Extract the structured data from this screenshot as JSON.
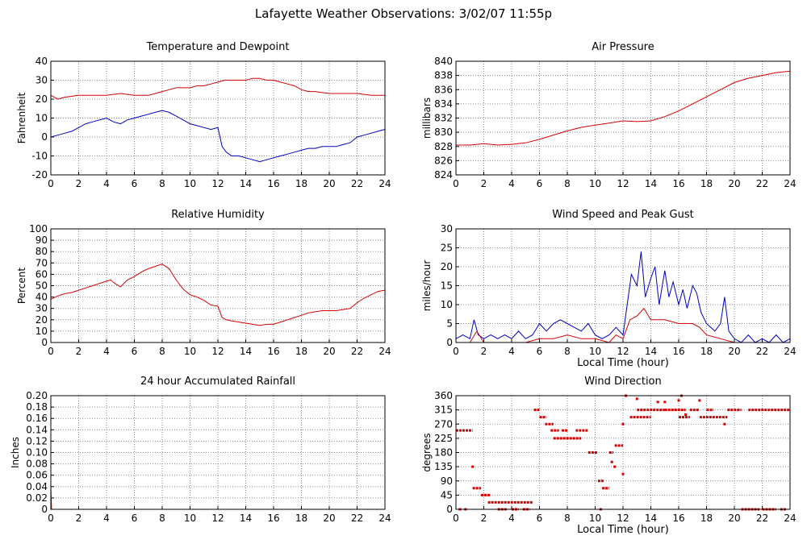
{
  "page": {
    "title": "Lafayette Weather Observations: 3/02/07 11:55p"
  },
  "colors": {
    "red": "#d40000",
    "blue": "#0000c0",
    "grid": "#888888",
    "frame": "#000000"
  },
  "chart_data": [
    {
      "id": "temp",
      "type": "line",
      "title": "Temperature and Dewpoint",
      "ylabel": "Fahrenheit",
      "xlabel": "",
      "xlim": [
        0,
        24
      ],
      "xticks": [
        0,
        2,
        4,
        6,
        8,
        10,
        12,
        14,
        16,
        18,
        20,
        22,
        24
      ],
      "ylim": [
        -20,
        40
      ],
      "yticks": [
        -20,
        -10,
        0,
        10,
        20,
        30,
        40
      ],
      "grid": true,
      "series": [
        {
          "color": "red",
          "x": [
            0,
            0.5,
            1,
            2,
            3,
            4,
            5,
            6,
            7,
            7.5,
            8,
            8.5,
            9,
            9.5,
            10,
            10.5,
            11,
            11.5,
            12,
            12.5,
            13,
            13.5,
            14,
            14.5,
            15,
            15.5,
            16,
            16.5,
            17,
            17.5,
            18,
            18.5,
            19,
            20,
            21,
            22,
            23,
            24
          ],
          "y": [
            22,
            20,
            21,
            22,
            22,
            22,
            23,
            22,
            22,
            23,
            24,
            25,
            26,
            26,
            26,
            27,
            27,
            28,
            29,
            30,
            30,
            30,
            30,
            31,
            31,
            30,
            30,
            29,
            28,
            27,
            25,
            24,
            24,
            23,
            23,
            23,
            22,
            22
          ]
        },
        {
          "color": "blue",
          "x": [
            0,
            0.5,
            1,
            1.5,
            2,
            2.5,
            3,
            3.5,
            4,
            4.5,
            5,
            5.5,
            6,
            6.5,
            7,
            7.5,
            8,
            8.5,
            9,
            9.5,
            10,
            10.5,
            11,
            11.5,
            12,
            12.3,
            12.6,
            13,
            13.5,
            14,
            14.5,
            15,
            15.5,
            16,
            16.5,
            17,
            17.5,
            18,
            18.5,
            19,
            19.5,
            20,
            20.5,
            21,
            21.5,
            22,
            22.5,
            23,
            23.5,
            24
          ],
          "y": [
            0,
            1,
            2,
            3,
            5,
            7,
            8,
            9,
            10,
            8,
            7,
            9,
            10,
            11,
            12,
            13,
            14,
            13,
            11,
            9,
            7,
            6,
            5,
            4,
            5,
            -5,
            -8,
            -10,
            -10,
            -11,
            -12,
            -13,
            -12,
            -11,
            -10,
            -9,
            -8,
            -7,
            -6,
            -6,
            -5,
            -5,
            -5,
            -4,
            -3,
            0,
            1,
            2,
            3,
            4
          ]
        }
      ]
    },
    {
      "id": "pressure",
      "type": "line",
      "title": "Air Pressure",
      "ylabel": "millibars",
      "xlabel": "",
      "xlim": [
        0,
        24
      ],
      "xticks": [
        0,
        2,
        4,
        6,
        8,
        10,
        12,
        14,
        16,
        18,
        20,
        22,
        24
      ],
      "ylim": [
        824,
        840
      ],
      "yticks": [
        824,
        826,
        828,
        830,
        832,
        834,
        836,
        838,
        840
      ],
      "grid": true,
      "series": [
        {
          "color": "red",
          "x": [
            0,
            1,
            2,
            3,
            4,
            5,
            6,
            7,
            8,
            9,
            10,
            11,
            12,
            13,
            14,
            15,
            16,
            17,
            18,
            19,
            20,
            21,
            22,
            23,
            24
          ],
          "y": [
            828.2,
            828.2,
            828.4,
            828.2,
            828.3,
            828.5,
            829,
            829.6,
            830.2,
            830.7,
            831,
            831.3,
            831.6,
            831.5,
            831.6,
            832.2,
            833,
            834,
            835,
            836,
            837,
            837.6,
            838,
            838.4,
            838.6
          ]
        }
      ]
    },
    {
      "id": "humidity",
      "type": "line",
      "title": "Relative Humidity",
      "ylabel": "Percent",
      "xlabel": "",
      "xlim": [
        0,
        24
      ],
      "xticks": [
        0,
        2,
        4,
        6,
        8,
        10,
        12,
        14,
        16,
        18,
        20,
        22,
        24
      ],
      "ylim": [
        0,
        100
      ],
      "yticks": [
        0,
        10,
        20,
        30,
        40,
        50,
        60,
        70,
        80,
        90,
        100
      ],
      "grid": true,
      "series": [
        {
          "color": "red",
          "x": [
            0,
            0.5,
            1,
            1.5,
            2,
            2.5,
            3,
            3.5,
            4,
            4.3,
            4.6,
            5,
            5.5,
            6,
            6.5,
            7,
            7.5,
            8,
            8.5,
            9,
            9.5,
            10,
            10.5,
            11,
            11.5,
            12,
            12.3,
            12.6,
            13,
            13.5,
            14,
            14.5,
            15,
            15.5,
            16,
            16.5,
            17,
            17.5,
            18,
            18.5,
            19,
            19.5,
            20,
            20.5,
            21,
            21.5,
            22,
            22.5,
            23,
            23.5,
            24
          ],
          "y": [
            38,
            41,
            43,
            44,
            46,
            48,
            50,
            52,
            54,
            55,
            52,
            49,
            55,
            58,
            62,
            65,
            67,
            69,
            65,
            55,
            47,
            42,
            40,
            37,
            33,
            32,
            22,
            20,
            19,
            18,
            17,
            16,
            15,
            16,
            16,
            18,
            20,
            22,
            24,
            26,
            27,
            28,
            28,
            28,
            29,
            30,
            35,
            39,
            42,
            45,
            46
          ]
        }
      ]
    },
    {
      "id": "wind",
      "type": "line",
      "title": "Wind Speed and Peak Gust",
      "ylabel": "miles/hour",
      "xlabel": "Local Time (hour)",
      "xlim": [
        0,
        24
      ],
      "xticks": [
        0,
        2,
        4,
        6,
        8,
        10,
        12,
        14,
        16,
        18,
        20,
        22,
        24
      ],
      "ylim": [
        0,
        30
      ],
      "yticks": [
        0,
        5,
        10,
        15,
        20,
        25,
        30
      ],
      "grid": true,
      "series": [
        {
          "color": "blue",
          "x": [
            0,
            0.5,
            1,
            1.3,
            1.6,
            2,
            2.5,
            3,
            3.5,
            4,
            4.5,
            5,
            5.5,
            6,
            6.5,
            7,
            7.5,
            8,
            8.5,
            9,
            9.5,
            10,
            10.5,
            11,
            11.5,
            12,
            12.3,
            12.6,
            13,
            13.3,
            13.6,
            14,
            14.3,
            14.6,
            15,
            15.3,
            15.6,
            16,
            16.3,
            16.6,
            17,
            17.3,
            17.6,
            18,
            18.3,
            18.6,
            19,
            19.3,
            19.6,
            20,
            20.5,
            21,
            21.5,
            22,
            22.5,
            23,
            23.5,
            24
          ],
          "y": [
            1,
            2,
            1,
            6,
            2,
            1,
            2,
            1,
            2,
            1,
            3,
            1,
            2,
            5,
            3,
            5,
            6,
            5,
            4,
            3,
            5,
            2,
            1,
            2,
            4,
            2,
            10,
            18,
            15,
            24,
            12,
            17,
            20,
            10,
            19,
            12,
            16,
            10,
            14,
            9,
            15,
            13,
            8,
            5,
            4,
            3,
            5,
            12,
            3,
            1,
            0,
            2,
            0,
            1,
            0,
            2,
            0,
            1
          ]
        },
        {
          "color": "red",
          "x": [
            0,
            1,
            1.5,
            2,
            3,
            4,
            5,
            6,
            7,
            8,
            9,
            10,
            11,
            11.5,
            12,
            12.5,
            13,
            13.5,
            14,
            15,
            16,
            17,
            17.5,
            18,
            19,
            20,
            21,
            22,
            23,
            24
          ],
          "y": [
            0,
            0,
            3,
            0,
            0,
            0,
            0,
            1,
            1,
            2,
            1,
            1,
            0,
            2,
            1,
            6,
            7,
            9,
            6,
            6,
            5,
            5,
            4,
            2,
            1,
            0,
            0,
            0,
            0,
            0
          ]
        }
      ]
    },
    {
      "id": "rain",
      "type": "line",
      "title": "24 hour Accumulated Rainfall",
      "ylabel": "Inches",
      "xlabel": "",
      "xlim": [
        0,
        24
      ],
      "xticks": [
        0,
        2,
        4,
        6,
        8,
        10,
        12,
        14,
        16,
        18,
        20,
        22,
        24
      ],
      "ylim": [
        0,
        0.2
      ],
      "yticks": [
        0,
        0.02,
        0.04,
        0.06,
        0.08,
        0.1,
        0.12,
        0.14,
        0.16,
        0.18,
        0.2
      ],
      "ytick_labels": [
        "0",
        "0.02",
        "0.04",
        "0.06",
        "0.08",
        "0.10",
        "0.12",
        "0.14",
        "0.16",
        "0.18",
        "0.20"
      ],
      "grid": true,
      "series": [
        {
          "color": "red",
          "x": [
            0,
            0,
            0.05,
            24
          ],
          "y": [
            0.08,
            0.04,
            0,
            0
          ]
        }
      ]
    },
    {
      "id": "direction",
      "type": "scatter",
      "title": "Wind Direction",
      "ylabel": "degrees",
      "xlabel": "Local Time (hour)",
      "xlim": [
        0,
        24
      ],
      "xticks": [
        0,
        2,
        4,
        6,
        8,
        10,
        12,
        14,
        16,
        18,
        20,
        22,
        24
      ],
      "ylim": [
        0,
        360
      ],
      "yticks": [
        0,
        45,
        90,
        135,
        180,
        225,
        270,
        315,
        360
      ],
      "grid": true,
      "segments": [
        {
          "x0": 0,
          "x1": 1.2,
          "y": 250
        },
        {
          "x0": 0.2,
          "x1": 0.4,
          "y": 0
        },
        {
          "x0": 0.6,
          "x1": 0.8,
          "y": 0
        },
        {
          "x0": 1.2,
          "x1": 1.8,
          "y": 67
        },
        {
          "x0": 1.8,
          "x1": 2.5,
          "y": 45
        },
        {
          "x0": 2.3,
          "x1": 3.0,
          "y": 22
        },
        {
          "x0": 3.0,
          "x1": 5.5,
          "y": 22
        },
        {
          "x0": 3.0,
          "x1": 3.7,
          "y": 0
        },
        {
          "x0": 4.0,
          "x1": 4.5,
          "y": 0
        },
        {
          "x0": 4.8,
          "x1": 5.3,
          "y": 0
        },
        {
          "x0": 5.6,
          "x1": 6.0,
          "y": 315
        },
        {
          "x0": 6.0,
          "x1": 6.5,
          "y": 292
        },
        {
          "x0": 6.4,
          "x1": 7.0,
          "y": 270
        },
        {
          "x0": 6.8,
          "x1": 7.4,
          "y": 250
        },
        {
          "x0": 7.0,
          "x1": 9.0,
          "y": 225
        },
        {
          "x0": 7.6,
          "x1": 8.0,
          "y": 250
        },
        {
          "x0": 8.6,
          "x1": 9.5,
          "y": 250
        },
        {
          "x0": 9.5,
          "x1": 10.2,
          "y": 180
        },
        {
          "x0": 10.2,
          "x1": 10.6,
          "y": 90
        },
        {
          "x0": 10.5,
          "x1": 11.0,
          "y": 67
        },
        {
          "x0": 11.0,
          "x1": 11.3,
          "y": 180
        },
        {
          "x0": 11.4,
          "x1": 12.0,
          "y": 202
        },
        {
          "x0": 12.5,
          "x1": 14.0,
          "y": 292
        },
        {
          "x0": 13.0,
          "x1": 15.0,
          "y": 315
        },
        {
          "x0": 15.0,
          "x1": 16.5,
          "y": 315
        },
        {
          "x0": 16.0,
          "x1": 16.8,
          "y": 292
        },
        {
          "x0": 16.8,
          "x1": 17.5,
          "y": 315
        },
        {
          "x0": 17.5,
          "x1": 19.5,
          "y": 292
        },
        {
          "x0": 18.0,
          "x1": 18.5,
          "y": 315
        },
        {
          "x0": 19.5,
          "x1": 20.5,
          "y": 315
        },
        {
          "x0": 20.5,
          "x1": 21.8,
          "y": 0
        },
        {
          "x0": 21.0,
          "x1": 24.0,
          "y": 315
        },
        {
          "x0": 22.0,
          "x1": 23.0,
          "y": 0
        },
        {
          "x0": 23.3,
          "x1": 23.7,
          "y": 0
        }
      ],
      "points": [
        {
          "x": 1.2,
          "y": 135
        },
        {
          "x": 10.4,
          "y": 0
        },
        {
          "x": 11.2,
          "y": 150
        },
        {
          "x": 11.4,
          "y": 135
        },
        {
          "x": 12.0,
          "y": 112
        },
        {
          "x": 12.0,
          "y": 270
        },
        {
          "x": 12.2,
          "y": 360
        },
        {
          "x": 13.0,
          "y": 350
        },
        {
          "x": 14.5,
          "y": 340
        },
        {
          "x": 15.0,
          "y": 340
        },
        {
          "x": 16.2,
          "y": 360
        },
        {
          "x": 16.0,
          "y": 345
        },
        {
          "x": 16.5,
          "y": 300
        },
        {
          "x": 17.5,
          "y": 345
        },
        {
          "x": 19.3,
          "y": 270
        }
      ]
    }
  ]
}
